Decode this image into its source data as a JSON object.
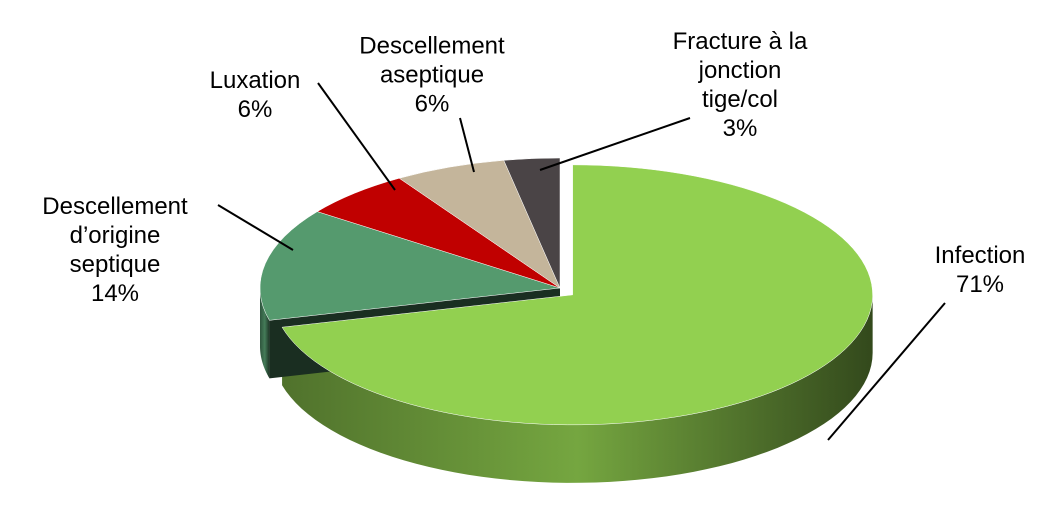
{
  "chart_data": {
    "type": "pie",
    "categories": [
      "Infection",
      "Descellement\nd’origine\nseptique",
      "Luxation",
      "Descellement\naseptique",
      "Fracture à la\njonction\ntige/col"
    ],
    "values": [
      71,
      14,
      6,
      6,
      3
    ],
    "value_labels": [
      "71%",
      "14%",
      "6%",
      "6%",
      "3%"
    ],
    "colors": [
      "#92d050",
      "#559a6e",
      "#c00000",
      "#c4b59b",
      "#4a4446"
    ]
  }
}
